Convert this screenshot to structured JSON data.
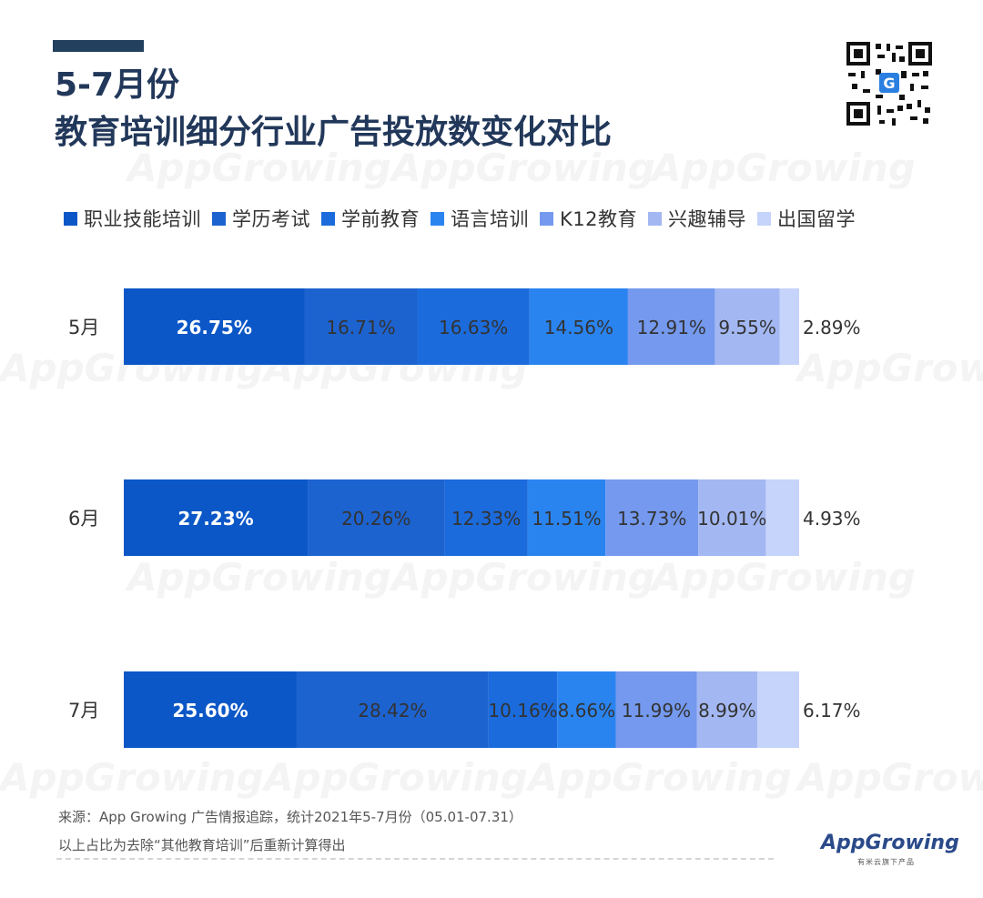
{
  "header": {
    "title_line1": "5-7月份",
    "title_line2": "教育培训细分行业广告投放数变化对比"
  },
  "chart_data": {
    "type": "bar",
    "orientation": "horizontal",
    "stacked": "100%",
    "categories": [
      "5月",
      "6月",
      "7月"
    ],
    "series": [
      {
        "name": "职业技能培训",
        "color": "#0b57c7",
        "values": [
          26.75,
          27.23,
          25.6
        ]
      },
      {
        "name": "学历考试",
        "color": "#1d63cf",
        "values": [
          16.71,
          20.26,
          28.42
        ]
      },
      {
        "name": "学前教育",
        "color": "#1b6bdc",
        "values": [
          16.63,
          12.33,
          10.16
        ]
      },
      {
        "name": "语言培训",
        "color": "#2a84f0",
        "values": [
          14.56,
          11.51,
          8.66
        ]
      },
      {
        "name": "K12教育",
        "color": "#7499ee",
        "values": [
          12.91,
          13.73,
          11.99
        ]
      },
      {
        "name": "兴趣辅导",
        "color": "#a3b8f2",
        "values": [
          9.55,
          10.01,
          8.99
        ]
      },
      {
        "name": "出国留学",
        "color": "#c6d3fb",
        "values": [
          2.89,
          4.93,
          6.17
        ]
      }
    ],
    "data_labels": [
      [
        "26.75%",
        "16.71%",
        "16.63%",
        "14.56%",
        "12.91%",
        "9.55%",
        "2.89%"
      ],
      [
        "27.23%",
        "20.26%",
        "12.33%",
        "11.51%",
        "13.73%",
        "10.01%",
        "4.93%"
      ],
      [
        "25.60%",
        "28.42%",
        "10.16%",
        "8.66%",
        "11.99%",
        "8.99%",
        "6.17%"
      ]
    ],
    "legend_position": "top-left",
    "grid": false
  },
  "watermark": "AppGrowing",
  "footer": {
    "source": "来源：App Growing 广告情报追踪，统计2021年5-7月份（05.01-07.31）",
    "note": "以上占比为去除“其他教育培训”后重新计算得出",
    "brand": "AppGrowing",
    "brand_sub": "有米云旗下产品"
  }
}
